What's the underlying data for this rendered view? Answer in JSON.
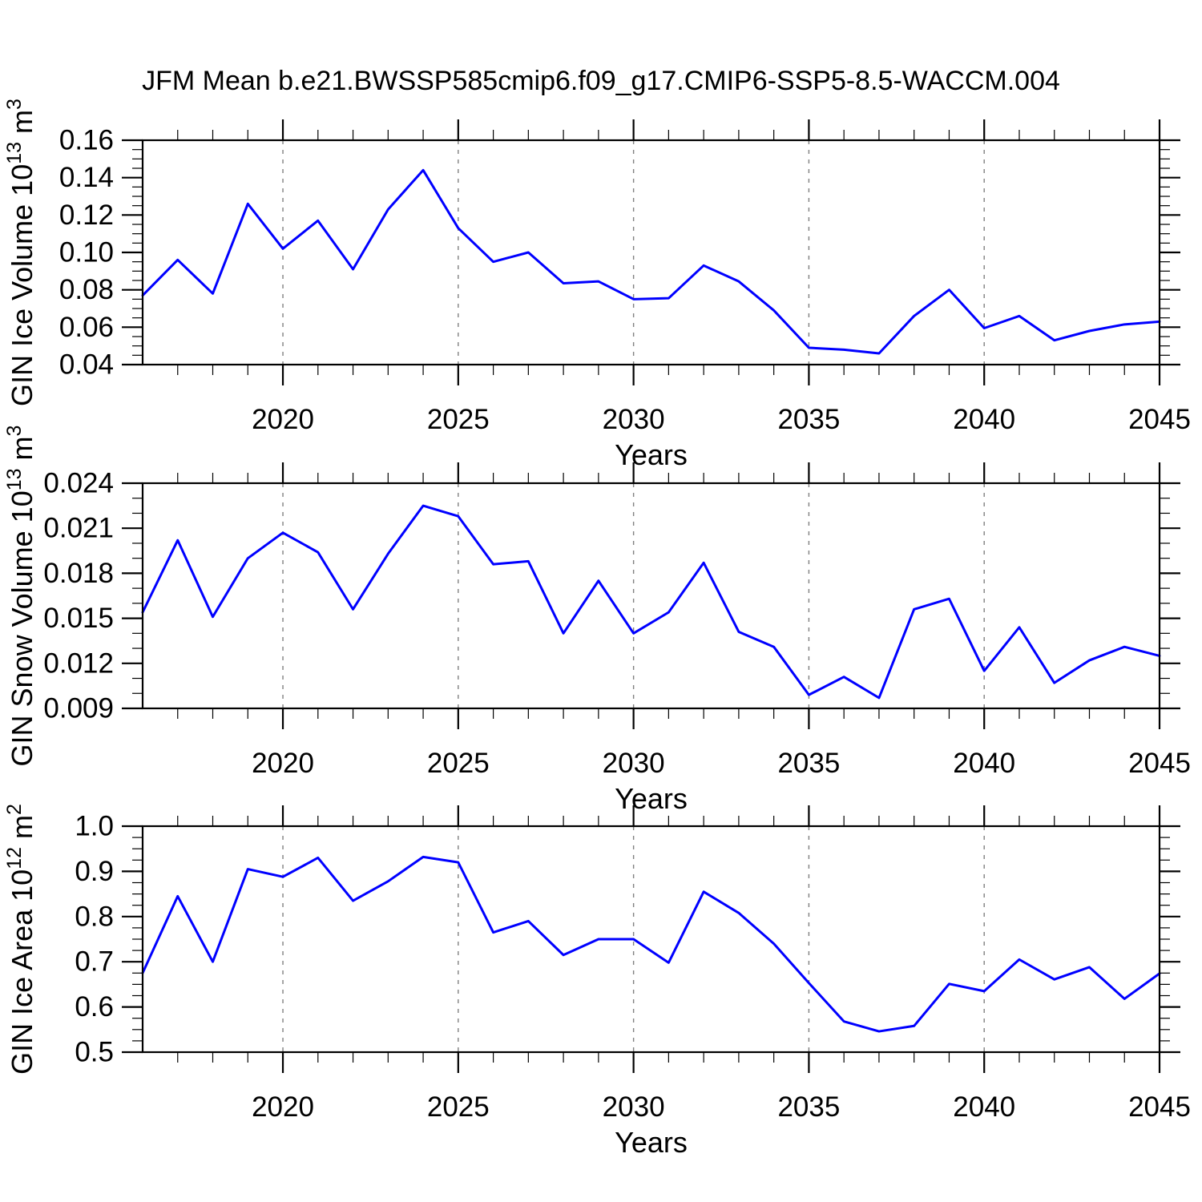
{
  "title": "JFM Mean b.e21.BWSSP585cmip6.f09_g17.CMIP6-SSP5-8.5-WACCM.004",
  "colors": {
    "line": "#0000ff",
    "grid": "#808080",
    "axis": "#000000",
    "background": "#ffffff",
    "text": "#000000"
  },
  "x_axis": {
    "label": "Years",
    "min": 2016,
    "max": 2045,
    "major_ticks": [
      2020,
      2025,
      2030,
      2035,
      2040,
      2045
    ],
    "gridline_years": [
      2020,
      2025,
      2030,
      2035,
      2040
    ],
    "years": [
      2016,
      2017,
      2018,
      2019,
      2020,
      2021,
      2022,
      2023,
      2024,
      2025,
      2026,
      2027,
      2028,
      2029,
      2030,
      2031,
      2032,
      2033,
      2034,
      2035,
      2036,
      2037,
      2038,
      2039,
      2040,
      2041,
      2042,
      2043,
      2044,
      2045
    ]
  },
  "chart_data": [
    {
      "type": "line",
      "name": "gin-ice-volume",
      "ylabel": {
        "text": "GIN Ice Volume 10",
        "sup": "13",
        "unit": " m",
        "unit_sup": "3"
      },
      "ylim": [
        0.04,
        0.16
      ],
      "y_ticks": [
        0.04,
        0.06,
        0.08,
        0.1,
        0.12,
        0.14,
        0.16
      ],
      "y_tick_labels": [
        "0.04",
        "0.06",
        "0.08",
        "0.10",
        "0.12",
        "0.14",
        "0.16"
      ],
      "y_minor_step": 0.005,
      "xlabel": "Years",
      "values": [
        0.077,
        0.096,
        0.078,
        0.126,
        0.102,
        0.117,
        0.091,
        0.123,
        0.144,
        0.113,
        0.095,
        0.1,
        0.0835,
        0.0845,
        0.075,
        0.0755,
        0.093,
        0.0845,
        0.069,
        0.049,
        0.048,
        0.046,
        0.066,
        0.08,
        0.0595,
        0.066,
        0.053,
        0.058,
        0.0615,
        0.063
      ]
    },
    {
      "type": "line",
      "name": "gin-snow-volume",
      "ylabel": {
        "text": "GIN Snow Volume 10",
        "sup": "13",
        "unit": " m",
        "unit_sup": "3"
      },
      "ylim": [
        0.009,
        0.024
      ],
      "y_ticks": [
        0.009,
        0.012,
        0.015,
        0.018,
        0.021,
        0.024
      ],
      "y_tick_labels": [
        "0.009",
        "0.012",
        "0.015",
        "0.018",
        "0.021",
        "0.024"
      ],
      "y_minor_step": 0.001,
      "xlabel": "Years",
      "values": [
        0.0154,
        0.0202,
        0.0151,
        0.019,
        0.0207,
        0.0194,
        0.0156,
        0.0193,
        0.0225,
        0.0218,
        0.0186,
        0.0188,
        0.014,
        0.0175,
        0.014,
        0.0154,
        0.0187,
        0.0141,
        0.0131,
        0.0099,
        0.0111,
        0.0097,
        0.0156,
        0.0163,
        0.0115,
        0.0144,
        0.0107,
        0.0122,
        0.0131,
        0.0125
      ]
    },
    {
      "type": "line",
      "name": "gin-ice-area",
      "ylabel": {
        "text": "GIN Ice Area 10",
        "sup": "12",
        "unit": " m",
        "unit_sup": "2"
      },
      "ylim": [
        0.5,
        1.0
      ],
      "y_ticks": [
        0.5,
        0.6,
        0.7,
        0.8,
        0.9,
        1.0
      ],
      "y_tick_labels": [
        "0.5",
        "0.6",
        "0.7",
        "0.8",
        "0.9",
        "1.0"
      ],
      "y_minor_step": 0.025,
      "xlabel": "Years",
      "values": [
        0.675,
        0.845,
        0.7,
        0.905,
        0.888,
        0.93,
        0.835,
        0.878,
        0.932,
        0.92,
        0.765,
        0.79,
        0.715,
        0.75,
        0.75,
        0.698,
        0.855,
        0.808,
        0.74,
        0.653,
        0.568,
        0.546,
        0.558,
        0.651,
        0.635,
        0.705,
        0.661,
        0.688,
        0.618,
        0.674
      ]
    }
  ]
}
